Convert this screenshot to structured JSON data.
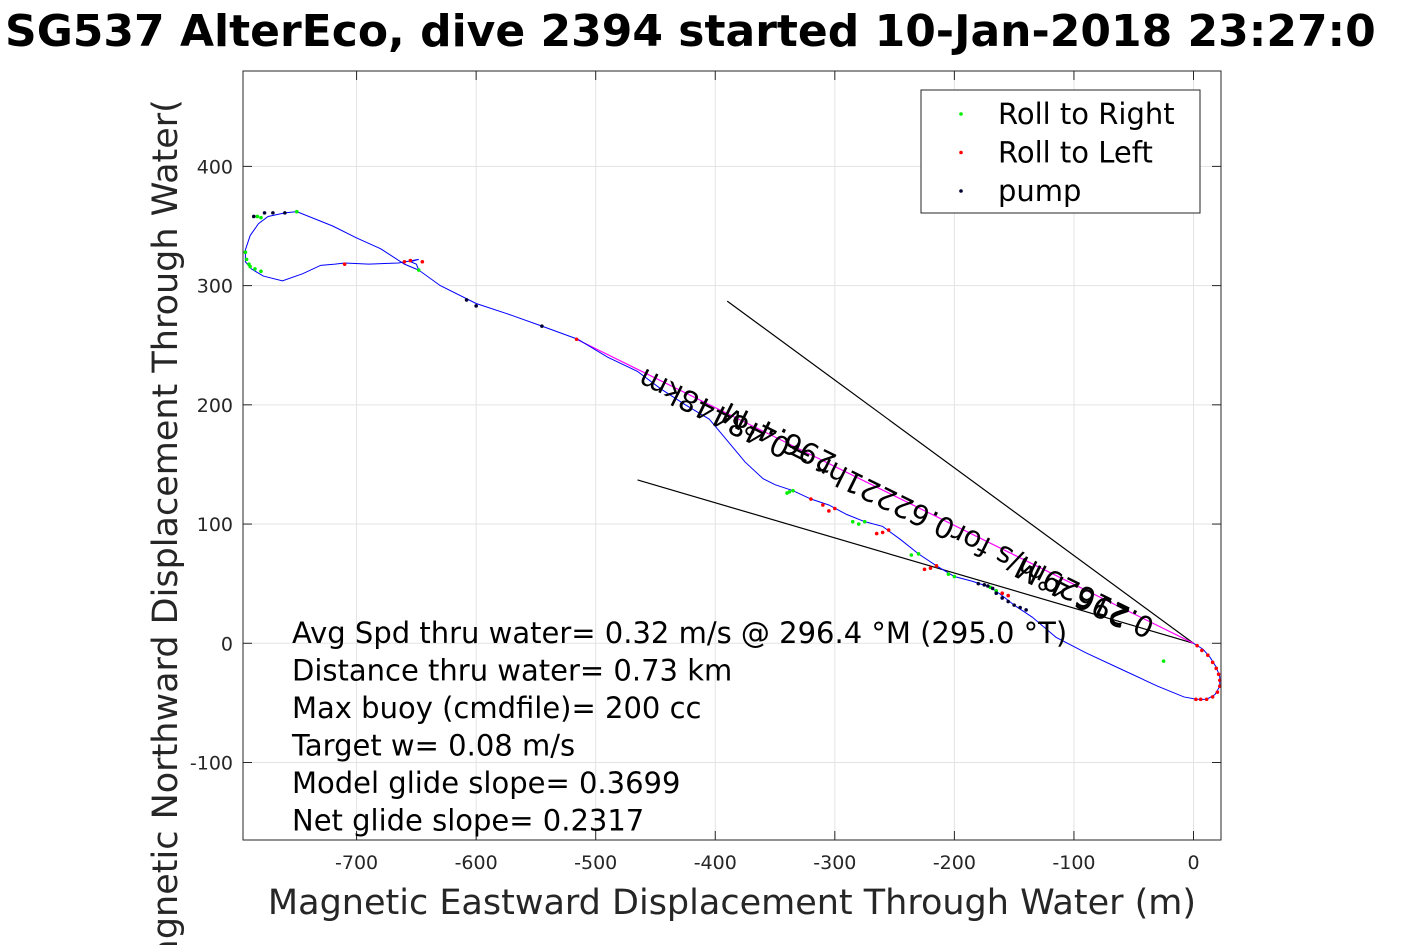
{
  "chart_data": {
    "type": "line",
    "title": "SG537 AlterEco, dive 2394 started 10-Jan-2018 23:27:0",
    "xlabel": "Magnetic Eastward Displacement Through Water (m)",
    "ylabel": "Magnetic Northward Displacement Through Water(",
    "xlim": [
      -795,
      23
    ],
    "ylim": [
      -165,
      480
    ],
    "xticks": [
      -700,
      -600,
      -500,
      -400,
      -300,
      -200,
      -100,
      0
    ],
    "yticks": [
      -100,
      0,
      100,
      200,
      300,
      400
    ],
    "grid": true,
    "legend": {
      "placement": "top-right",
      "entries": [
        {
          "name": "Roll to Right",
          "color": "#00ee00"
        },
        {
          "name": "Roll to Left",
          "color": "#ff0000"
        },
        {
          "name": "pump",
          "color": "#000033"
        }
      ]
    },
    "track_color": "#0000ff",
    "heading_line_color": "#ff00ff",
    "track": [
      [
        0,
        0
      ],
      [
        8,
        -5
      ],
      [
        14,
        -12
      ],
      [
        19,
        -20
      ],
      [
        22,
        -28
      ],
      [
        22,
        -36
      ],
      [
        18,
        -43
      ],
      [
        11,
        -47
      ],
      [
        3,
        -47
      ],
      [
        -8,
        -45
      ],
      [
        -30,
        -36
      ],
      [
        -60,
        -22
      ],
      [
        -90,
        -8
      ],
      [
        -115,
        5
      ],
      [
        -135,
        22
      ],
      [
        -150,
        32
      ],
      [
        -160,
        40
      ],
      [
        -170,
        47
      ],
      [
        -185,
        52
      ],
      [
        -200,
        56
      ],
      [
        -215,
        65
      ],
      [
        -230,
        75
      ],
      [
        -245,
        87
      ],
      [
        -260,
        98
      ],
      [
        -275,
        102
      ],
      [
        -290,
        108
      ],
      [
        -305,
        116
      ],
      [
        -320,
        121
      ],
      [
        -335,
        128
      ],
      [
        -350,
        133
      ],
      [
        -360,
        138
      ],
      [
        -375,
        152
      ],
      [
        -390,
        170
      ],
      [
        -405,
        188
      ],
      [
        -425,
        200
      ],
      [
        -445,
        213
      ],
      [
        -465,
        228
      ],
      [
        -490,
        240
      ],
      [
        -515,
        255
      ],
      [
        -545,
        266
      ],
      [
        -570,
        275
      ],
      [
        -600,
        285
      ],
      [
        -630,
        300
      ],
      [
        -648,
        313
      ],
      [
        -650,
        318
      ],
      [
        -655,
        320
      ],
      [
        -648,
        322
      ],
      [
        -665,
        319
      ],
      [
        -690,
        318
      ],
      [
        -710,
        319
      ],
      [
        -718,
        318
      ],
      [
        -730,
        317
      ],
      [
        -745,
        310
      ],
      [
        -762,
        304
      ],
      [
        -778,
        308
      ],
      [
        -788,
        314
      ],
      [
        -793,
        320
      ],
      [
        -793,
        330
      ],
      [
        -789,
        342
      ],
      [
        -782,
        352
      ],
      [
        -774,
        358
      ],
      [
        -760,
        361
      ],
      [
        -750,
        362
      ],
      [
        -720,
        350
      ],
      [
        -700,
        340
      ],
      [
        -680,
        331
      ],
      [
        -660,
        318
      ],
      [
        -648,
        313
      ]
    ],
    "roll_right": [
      [
        -170,
        47
      ],
      [
        -165,
        44
      ],
      [
        -200,
        56
      ],
      [
        -205,
        58
      ],
      [
        -230,
        75
      ],
      [
        -236,
        74
      ],
      [
        -275,
        102
      ],
      [
        -280,
        100
      ],
      [
        -285,
        102
      ],
      [
        -335,
        128
      ],
      [
        -338,
        127
      ],
      [
        -340,
        126
      ],
      [
        -648,
        313
      ],
      [
        -750,
        362
      ],
      [
        -780,
        357
      ],
      [
        -783,
        358
      ],
      [
        -785,
        314
      ],
      [
        -790,
        318
      ],
      [
        -792,
        322
      ],
      [
        -793,
        328
      ],
      [
        -789,
        316
      ],
      [
        -780,
        312
      ],
      [
        -25,
        -15
      ]
    ],
    "roll_left": [
      [
        3,
        -2
      ],
      [
        7,
        -6
      ],
      [
        12,
        -10
      ],
      [
        16,
        -16
      ],
      [
        19,
        -21
      ],
      [
        21,
        -26
      ],
      [
        22,
        -31
      ],
      [
        22,
        -36
      ],
      [
        20,
        -41
      ],
      [
        16,
        -45
      ],
      [
        11,
        -47
      ],
      [
        6,
        -47
      ],
      [
        2,
        -47
      ],
      [
        -155,
        40
      ],
      [
        -160,
        42
      ],
      [
        -215,
        65
      ],
      [
        -220,
        63
      ],
      [
        -225,
        62
      ],
      [
        -255,
        95
      ],
      [
        -260,
        93
      ],
      [
        -265,
        92
      ],
      [
        -300,
        113
      ],
      [
        -305,
        111
      ],
      [
        -310,
        116
      ],
      [
        -320,
        121
      ],
      [
        -516,
        255
      ],
      [
        -710,
        318
      ],
      [
        -660,
        320
      ],
      [
        -655,
        321
      ],
      [
        -645,
        320
      ]
    ],
    "pump": [
      [
        -140,
        28
      ],
      [
        -145,
        30
      ],
      [
        -150,
        32
      ],
      [
        -155,
        35
      ],
      [
        -160,
        38
      ],
      [
        -165,
        42
      ],
      [
        -168,
        46
      ],
      [
        -172,
        48
      ],
      [
        -175,
        49
      ],
      [
        -180,
        50
      ],
      [
        -545,
        266
      ],
      [
        -600,
        283
      ],
      [
        -608,
        288
      ],
      [
        -760,
        361
      ],
      [
        -770,
        361
      ],
      [
        -777,
        361
      ],
      [
        -786,
        358
      ]
    ],
    "heading_line": [
      [
        0,
        0
      ],
      [
        -516,
        255
      ]
    ],
    "wedge_lines": [
      [
        [
          0,
          0
        ],
        [
          -390,
          287
        ]
      ],
      [
        [
          0,
          0
        ],
        [
          -465,
          137
        ]
      ]
    ],
    "annotations": [
      {
        "text": "0.21629m/s for0.62221hr =0.48448km",
        "x": -245,
        "y": 125,
        "angle": 26.3
      },
      {
        "text": "296.4°M",
        "x": -343,
        "y": 180,
        "angle": 26.3
      },
      {
        "text": "296.4°M",
        "x": -98,
        "y": 50,
        "angle": 26.3
      }
    ],
    "info_lines": [
      "Avg Spd thru water=  0.32 m/s @ 296.4 °M (295.0 °T)",
      "Distance thru water=  0.73 km",
      "Max buoy (cmdfile)= 200 cc",
      "Target w= 0.08 m/s",
      "Model glide slope= 0.3699",
      "Net glide slope= 0.2317"
    ]
  }
}
